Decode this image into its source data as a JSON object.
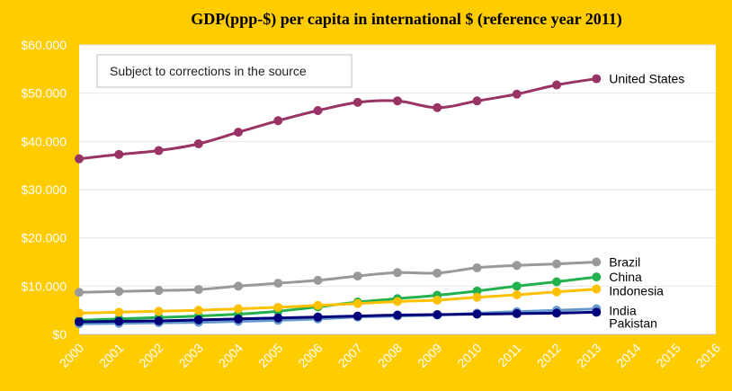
{
  "chart_data": {
    "type": "line",
    "title": "GDP(ppp-$) per capita in international  $ (reference year 2011)",
    "note": "Subject to corrections  in the source",
    "x_ticks": [
      "2000",
      "2001",
      "2002",
      "2003",
      "2004",
      "2005",
      "2006",
      "2007",
      "2008",
      "2009",
      "2010",
      "2011",
      "2012",
      "2013",
      "2014",
      "2015",
      "2016"
    ],
    "y_ticks": [
      "$0",
      "$10.000",
      "$20.000",
      "$30.000",
      "$40.000",
      "$50.000",
      "$60.000"
    ],
    "ylim": [
      0,
      60000
    ],
    "xlim": [
      2000,
      2016
    ],
    "grid": true,
    "series": [
      {
        "name": "United States",
        "color": "#993366",
        "x": [
          2000,
          2001,
          2002,
          2003,
          2004,
          2005,
          2006,
          2007,
          2008,
          2009,
          2010,
          2011,
          2012,
          2013
        ],
        "values": [
          36400,
          37300,
          38100,
          39500,
          41900,
          44300,
          46400,
          48100,
          48400,
          47000,
          48400,
          49800,
          51700,
          53000
        ]
      },
      {
        "name": "Brazil",
        "color": "#999999",
        "x": [
          2000,
          2001,
          2002,
          2003,
          2004,
          2005,
          2006,
          2007,
          2008,
          2009,
          2010,
          2011,
          2012,
          2013
        ],
        "values": [
          8700,
          8900,
          9100,
          9300,
          10000,
          10600,
          11200,
          12100,
          12800,
          12700,
          13800,
          14300,
          14600,
          15000
        ]
      },
      {
        "name": "China",
        "color": "#22b14c",
        "x": [
          2000,
          2001,
          2002,
          2003,
          2004,
          2005,
          2006,
          2007,
          2008,
          2009,
          2010,
          2011,
          2012,
          2013
        ],
        "values": [
          2900,
          3200,
          3500,
          3800,
          4200,
          4800,
          5700,
          6700,
          7400,
          8100,
          9000,
          10000,
          10900,
          11900
        ]
      },
      {
        "name": "Indonesia",
        "color": "#ffc000",
        "x": [
          2000,
          2001,
          2002,
          2003,
          2004,
          2005,
          2006,
          2007,
          2008,
          2009,
          2010,
          2011,
          2012,
          2013
        ],
        "values": [
          4400,
          4600,
          4800,
          5000,
          5300,
          5600,
          6000,
          6400,
          6800,
          7100,
          7700,
          8200,
          8800,
          9400
        ]
      },
      {
        "name": "India",
        "color": "#6699cc",
        "x": [
          2000,
          2001,
          2002,
          2003,
          2004,
          2005,
          2006,
          2007,
          2008,
          2009,
          2010,
          2011,
          2012,
          2013
        ],
        "values": [
          2200,
          2300,
          2400,
          2500,
          2700,
          2900,
          3200,
          3600,
          3800,
          4000,
          4400,
          4700,
          5000,
          5300
        ]
      },
      {
        "name": "Pakistan",
        "color": "#00007a",
        "x": [
          2000,
          2001,
          2002,
          2003,
          2004,
          2005,
          2006,
          2007,
          2008,
          2009,
          2010,
          2011,
          2012,
          2013
        ],
        "values": [
          2600,
          2700,
          2800,
          3000,
          3200,
          3400,
          3600,
          3800,
          4000,
          4100,
          4200,
          4300,
          4400,
          4600
        ]
      }
    ]
  }
}
